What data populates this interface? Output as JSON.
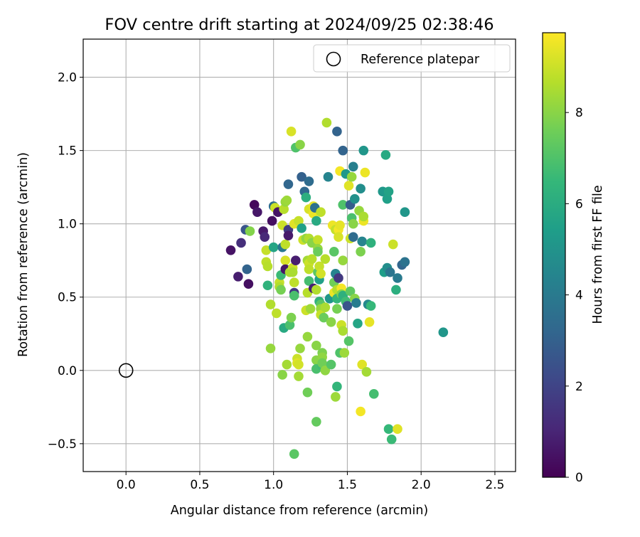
{
  "chart_data": {
    "type": "scatter",
    "title": "FOV centre drift starting at 2024/09/25 02:38:46",
    "xlabel": "Angular distance from reference (arcmin)",
    "ylabel": "Rotation from reference (arcmin)",
    "xlim": [
      -0.29,
      2.64
    ],
    "ylim": [
      -0.69,
      2.26
    ],
    "xticks": [
      0.0,
      0.5,
      1.0,
      1.5,
      2.0,
      2.5
    ],
    "xtick_labels": [
      "0.0",
      "0.5",
      "1.0",
      "1.5",
      "2.0",
      "2.5"
    ],
    "yticks": [
      -0.5,
      0.0,
      0.5,
      1.0,
      1.5,
      2.0
    ],
    "ytick_labels": [
      "−0.5",
      "0.0",
      "0.5",
      "1.0",
      "1.5",
      "2.0"
    ],
    "grid": true,
    "legend": {
      "position": "top-right",
      "entries": [
        "Reference platepar"
      ]
    },
    "reference": {
      "name": "Reference platepar",
      "x": 0.0,
      "y": 0.0
    },
    "colorbar": {
      "label": "Hours from first FF file",
      "colormap": "viridis",
      "range": [
        0,
        9.75
      ],
      "ticks": [
        0,
        2,
        4,
        6,
        8
      ],
      "tick_labels": [
        "0",
        "2",
        "4",
        "6",
        "8"
      ]
    },
    "colormap_stops": [
      "#440154",
      "#482878",
      "#3e4989",
      "#31688e",
      "#26828e",
      "#1f9e89",
      "#35b779",
      "#6ece58",
      "#b5de2b",
      "#fde725"
    ],
    "points": [
      [
        0.71,
        0.82,
        0.5
      ],
      [
        0.76,
        0.64,
        0.8
      ],
      [
        0.78,
        0.87,
        1.3
      ],
      [
        0.81,
        0.96,
        2.6
      ],
      [
        0.82,
        0.69,
        3.1
      ],
      [
        0.83,
        0.59,
        0.4
      ],
      [
        0.84,
        0.95,
        7.9
      ],
      [
        0.87,
        1.13,
        0.2
      ],
      [
        0.89,
        1.08,
        0.6
      ],
      [
        0.93,
        0.95,
        0.7
      ],
      [
        0.94,
        0.91,
        1.1
      ],
      [
        0.95,
        0.82,
        8.9
      ],
      [
        0.95,
        0.74,
        8.8
      ],
      [
        0.96,
        0.71,
        8.7
      ],
      [
        0.96,
        0.58,
        6.3
      ],
      [
        0.98,
        0.45,
        8.6
      ],
      [
        0.98,
        0.15,
        8.2
      ],
      [
        0.99,
        1.02,
        0.4
      ],
      [
        1.0,
        1.12,
        3.5
      ],
      [
        1.0,
        0.84,
        5.7
      ],
      [
        1.01,
        1.11,
        9.0
      ],
      [
        1.02,
        0.39,
        8.8
      ],
      [
        1.03,
        1.08,
        0.5
      ],
      [
        1.04,
        0.6,
        8.9
      ],
      [
        1.04,
        0.57,
        8.6
      ],
      [
        1.05,
        0.65,
        6.6
      ],
      [
        1.05,
        0.55,
        7.7
      ],
      [
        1.06,
        0.99,
        9.0
      ],
      [
        1.06,
        0.84,
        3.9
      ],
      [
        1.06,
        -0.03,
        8.0
      ],
      [
        1.07,
        1.1,
        8.7
      ],
      [
        1.07,
        0.29,
        5.9
      ],
      [
        1.08,
        1.15,
        8.2
      ],
      [
        1.08,
        0.86,
        8.8
      ],
      [
        1.08,
        0.75,
        9.2
      ],
      [
        1.08,
        0.69,
        0.6
      ],
      [
        1.09,
        1.16,
        8.3
      ],
      [
        1.09,
        0.04,
        8.4
      ],
      [
        1.1,
        1.27,
        3.2
      ],
      [
        1.1,
        0.96,
        1.7
      ],
      [
        1.1,
        0.92,
        0.7
      ],
      [
        1.11,
        0.67,
        8.5
      ],
      [
        1.11,
        0.31,
        6.9
      ],
      [
        1.12,
        1.63,
        9.2
      ],
      [
        1.12,
        0.36,
        7.8
      ],
      [
        1.13,
        0.7,
        9.0
      ],
      [
        1.13,
        0.67,
        8.5
      ],
      [
        1.14,
        1.0,
        9.3
      ],
      [
        1.14,
        0.6,
        8.8
      ],
      [
        1.14,
        0.53,
        1.6
      ],
      [
        1.14,
        0.51,
        6.9
      ],
      [
        1.14,
        -0.57,
        7.2
      ],
      [
        1.15,
        1.52,
        7.0
      ],
      [
        1.15,
        0.75,
        0.8
      ],
      [
        1.16,
        0.08,
        9.0
      ],
      [
        1.16,
        0.05,
        9.3
      ],
      [
        1.17,
        1.02,
        8.9
      ],
      [
        1.17,
        0.04,
        9.1
      ],
      [
        1.17,
        -0.04,
        8.4
      ],
      [
        1.18,
        1.54,
        8.0
      ],
      [
        1.18,
        0.15,
        8.2
      ],
      [
        1.19,
        1.32,
        3.0
      ],
      [
        1.19,
        0.97,
        5.5
      ],
      [
        1.2,
        0.89,
        9.0
      ],
      [
        1.21,
        1.22,
        3.3
      ],
      [
        1.22,
        1.18,
        6.1
      ],
      [
        1.22,
        0.9,
        8.1
      ],
      [
        1.22,
        0.41,
        9.0
      ],
      [
        1.23,
        0.75,
        8.4
      ],
      [
        1.23,
        0.53,
        8.7
      ],
      [
        1.23,
        0.23,
        8.2
      ],
      [
        1.23,
        -0.15,
        7.6
      ],
      [
        1.24,
        1.29,
        3.4
      ],
      [
        1.24,
        1.1,
        9.2
      ],
      [
        1.24,
        0.9,
        8.6
      ],
      [
        1.24,
        0.73,
        9.0
      ],
      [
        1.24,
        0.69,
        8.8
      ],
      [
        1.24,
        0.61,
        6.8
      ],
      [
        1.25,
        0.42,
        8.3
      ],
      [
        1.26,
        0.87,
        8.0
      ],
      [
        1.26,
        0.76,
        8.7
      ],
      [
        1.27,
        1.12,
        9.4
      ],
      [
        1.27,
        1.07,
        9.5
      ],
      [
        1.27,
        0.56,
        0.9
      ],
      [
        1.28,
        1.11,
        3.6
      ],
      [
        1.29,
        1.02,
        5.9
      ],
      [
        1.29,
        0.55,
        8.6
      ],
      [
        1.29,
        0.17,
        8.0
      ],
      [
        1.29,
        0.07,
        8.0
      ],
      [
        1.29,
        0.01,
        6.9
      ],
      [
        1.29,
        -0.35,
        7.4
      ],
      [
        1.3,
        0.89,
        8.9
      ],
      [
        1.3,
        0.83,
        8.2
      ],
      [
        1.3,
        0.81,
        7.5
      ],
      [
        1.3,
        0.67,
        7.2
      ],
      [
        1.31,
        0.71,
        8.9
      ],
      [
        1.31,
        0.62,
        5.5
      ],
      [
        1.31,
        0.47,
        6.3
      ],
      [
        1.32,
        1.08,
        8.8
      ],
      [
        1.32,
        0.66,
        9.1
      ],
      [
        1.32,
        0.45,
        7.2
      ],
      [
        1.32,
        0.42,
        8.2
      ],
      [
        1.32,
        0.38,
        8.9
      ],
      [
        1.33,
        0.12,
        7.8
      ],
      [
        1.33,
        0.09,
        8.1
      ],
      [
        1.33,
        0.03,
        6.7
      ],
      [
        1.33,
        0.05,
        7.6
      ],
      [
        1.34,
        0.36,
        7.5
      ],
      [
        1.35,
        0.76,
        8.7
      ],
      [
        1.35,
        0.43,
        8.5
      ],
      [
        1.35,
        0.0,
        8.1
      ],
      [
        1.36,
        1.69,
        8.6
      ],
      [
        1.37,
        1.32,
        4.4
      ],
      [
        1.38,
        0.49,
        5.1
      ],
      [
        1.39,
        0.33,
        8.0
      ],
      [
        1.39,
        0.04,
        7.1
      ],
      [
        1.4,
        0.99,
        9.5
      ],
      [
        1.41,
        0.81,
        7.2
      ],
      [
        1.41,
        0.6,
        7.6
      ],
      [
        1.41,
        0.53,
        9.5
      ],
      [
        1.42,
        0.96,
        8.9
      ],
      [
        1.42,
        0.66,
        4.4
      ],
      [
        1.42,
        -0.18,
        8.3
      ],
      [
        1.43,
        1.63,
        3.1
      ],
      [
        1.43,
        0.55,
        8.7
      ],
      [
        1.43,
        0.49,
        6.4
      ],
      [
        1.43,
        0.42,
        7.7
      ],
      [
        1.43,
        -0.11,
        6.4
      ],
      [
        1.44,
        0.96,
        9.6
      ],
      [
        1.44,
        0.91,
        9.2
      ],
      [
        1.44,
        0.63,
        1.6
      ],
      [
        1.45,
        1.36,
        9.6
      ],
      [
        1.45,
        0.99,
        9.4
      ],
      [
        1.45,
        0.12,
        7.0
      ],
      [
        1.46,
        0.56,
        9.6
      ],
      [
        1.46,
        0.52,
        7.9
      ],
      [
        1.46,
        0.31,
        9.0
      ],
      [
        1.47,
        1.5,
        3.1
      ],
      [
        1.47,
        1.13,
        7.0
      ],
      [
        1.47,
        0.75,
        8.2
      ],
      [
        1.47,
        0.51,
        6.2
      ],
      [
        1.47,
        0.27,
        8.5
      ],
      [
        1.48,
        0.12,
        8.3
      ],
      [
        1.49,
        1.34,
        5.2
      ],
      [
        1.49,
        0.47,
        6.7
      ],
      [
        1.5,
        0.44,
        2.6
      ],
      [
        1.51,
        1.26,
        9.3
      ],
      [
        1.51,
        0.2,
        7.1
      ],
      [
        1.52,
        1.13,
        2.9
      ],
      [
        1.52,
        0.9,
        9.0
      ],
      [
        1.52,
        0.54,
        7.3
      ],
      [
        1.53,
        1.32,
        8.2
      ],
      [
        1.53,
        1.04,
        6.9
      ],
      [
        1.54,
        1.39,
        4.2
      ],
      [
        1.54,
        1.0,
        8.0
      ],
      [
        1.54,
        0.91,
        3.4
      ],
      [
        1.55,
        1.17,
        4.9
      ],
      [
        1.55,
        0.49,
        8.0
      ],
      [
        1.56,
        0.46,
        4.1
      ],
      [
        1.57,
        0.32,
        5.7
      ],
      [
        1.58,
        1.09,
        8.2
      ],
      [
        1.59,
        1.24,
        4.8
      ],
      [
        1.59,
        0.81,
        7.8
      ],
      [
        1.59,
        -0.28,
        9.6
      ],
      [
        1.6,
        0.88,
        4.4
      ],
      [
        1.6,
        0.04,
        9.3
      ],
      [
        1.61,
        1.02,
        9.5
      ],
      [
        1.61,
        1.05,
        8.5
      ],
      [
        1.61,
        1.5,
        5.1
      ],
      [
        1.62,
        1.35,
        9.5
      ],
      [
        1.63,
        -0.01,
        8.4
      ],
      [
        1.64,
        0.45,
        4.6
      ],
      [
        1.65,
        0.33,
        9.4
      ],
      [
        1.66,
        0.44,
        6.5
      ],
      [
        1.66,
        0.87,
        6.2
      ],
      [
        1.68,
        -0.16,
        6.8
      ],
      [
        1.74,
        1.22,
        5.2
      ],
      [
        1.75,
        0.67,
        5.4
      ],
      [
        1.76,
        1.47,
        5.9
      ],
      [
        1.77,
        1.17,
        5.5
      ],
      [
        1.77,
        0.7,
        4.8
      ],
      [
        1.78,
        1.22,
        5.6
      ],
      [
        1.78,
        -0.4,
        6.5
      ],
      [
        1.79,
        0.67,
        3.8
      ],
      [
        1.8,
        -0.47,
        6.6
      ],
      [
        1.81,
        0.86,
        9.0
      ],
      [
        1.83,
        0.55,
        6.1
      ],
      [
        1.84,
        0.63,
        4.0
      ],
      [
        1.84,
        -0.4,
        9.3
      ],
      [
        1.87,
        0.72,
        3.2
      ],
      [
        1.89,
        0.74,
        3.7
      ],
      [
        1.89,
        1.08,
        5.1
      ],
      [
        2.15,
        0.26,
        5.1
      ]
    ]
  }
}
